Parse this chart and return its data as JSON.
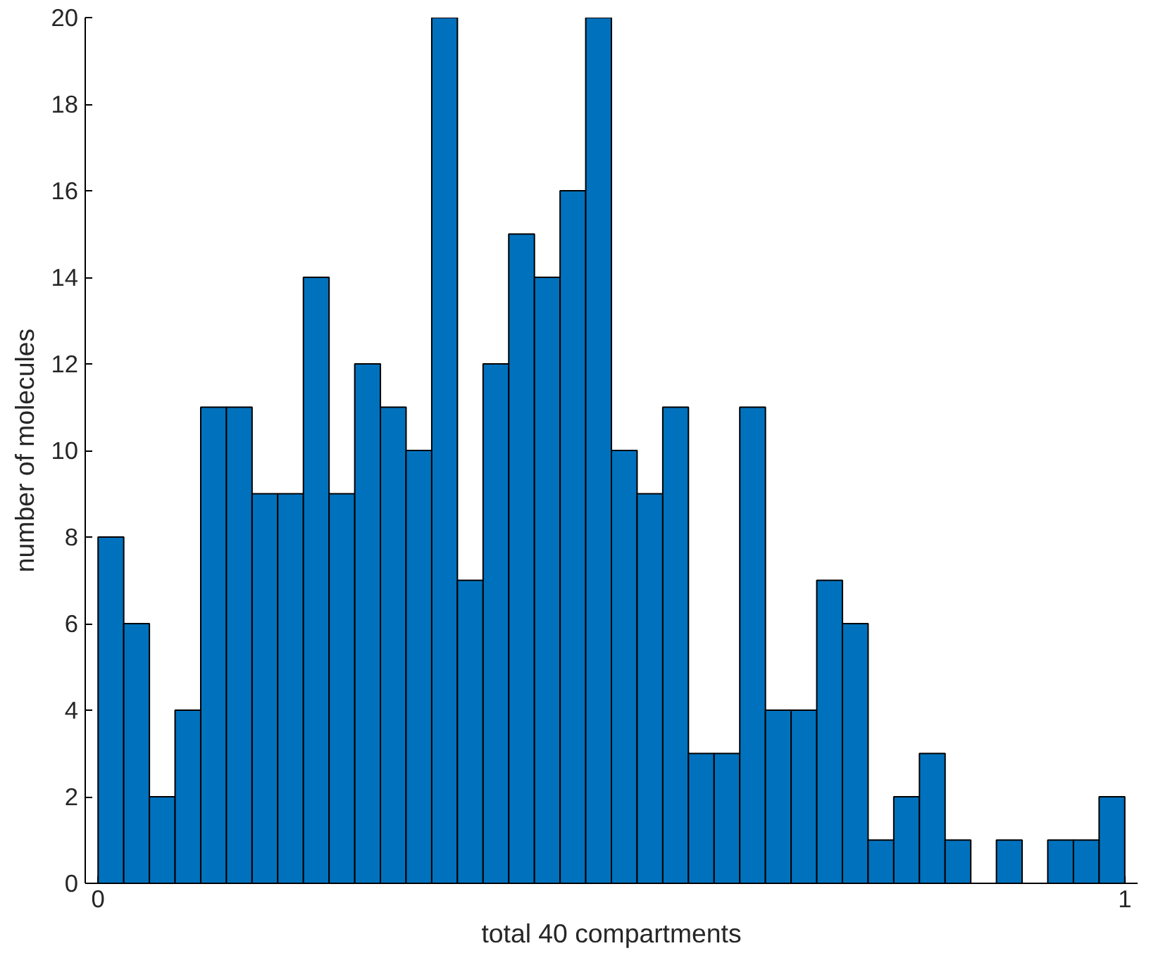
{
  "chart_data": {
    "type": "histogram",
    "xlabel": "total 40 compartments",
    "ylabel": "number of molecules",
    "bins": [
      0,
      0.025,
      0.05,
      0.075,
      0.1,
      0.125,
      0.15,
      0.175,
      0.2,
      0.225,
      0.25,
      0.275,
      0.3,
      0.325,
      0.35,
      0.375,
      0.4,
      0.425,
      0.45,
      0.475,
      0.5,
      0.525,
      0.55,
      0.575,
      0.6,
      0.625,
      0.65,
      0.675,
      0.7,
      0.725,
      0.75,
      0.775,
      0.8,
      0.825,
      0.85,
      0.875,
      0.9,
      0.925,
      0.95,
      0.975,
      1
    ],
    "values": [
      8,
      6,
      2,
      4,
      11,
      11,
      9,
      9,
      14,
      9,
      12,
      11,
      10,
      20,
      7,
      12,
      15,
      14,
      16,
      20,
      10,
      9,
      11,
      3,
      3,
      11,
      4,
      4,
      7,
      6,
      1,
      2,
      3,
      1,
      0,
      1,
      0,
      1,
      1,
      2
    ],
    "color": "#0072bd",
    "xlim": [
      -0.0125,
      1.0125
    ],
    "ylim": [
      0,
      20
    ],
    "xticks": [
      0,
      1
    ],
    "yticks": [
      0,
      2,
      4,
      6,
      8,
      10,
      12,
      14,
      16,
      18,
      20
    ],
    "grid": false
  }
}
